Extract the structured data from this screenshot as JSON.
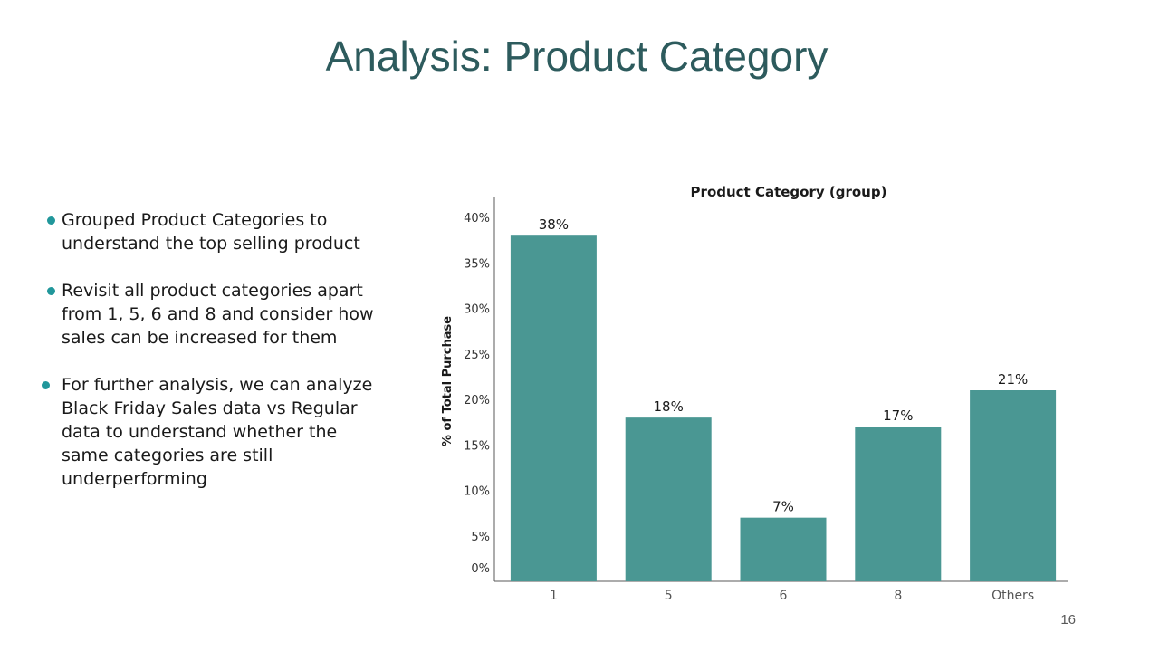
{
  "slide": {
    "title": "Analysis: Product Category",
    "page_number": "16"
  },
  "bullets": [
    "Grouped Product Categories to understand the top selling product",
    "Revisit all product categories apart from 1, 5, 6 and 8 and consider how sales can be increased for them",
    "For further analysis, we can analyze Black Friday Sales data vs Regular data to understand whether the same categories are still underperforming"
  ],
  "colors": {
    "title": "#2d5b5d",
    "bar": "#4a9793",
    "bullet": "#21979b"
  },
  "chart_data": {
    "type": "bar",
    "title": "Product Category (group)",
    "xlabel": "",
    "ylabel": "% of Total Purchase",
    "categories": [
      "1",
      "5",
      "6",
      "8",
      "Others"
    ],
    "values": [
      38,
      18,
      7,
      17,
      21
    ],
    "data_labels": [
      "38%",
      "18%",
      "7%",
      "17%",
      "21%"
    ],
    "ytick_values": [
      0,
      5,
      10,
      15,
      20,
      25,
      30,
      35,
      40
    ],
    "ytick_labels": [
      "0%",
      "5%",
      "10%",
      "15%",
      "20%",
      "25%",
      "30%",
      "35%",
      "40%"
    ],
    "ylim": [
      0,
      42
    ],
    "grid": false,
    "legend": "none"
  }
}
